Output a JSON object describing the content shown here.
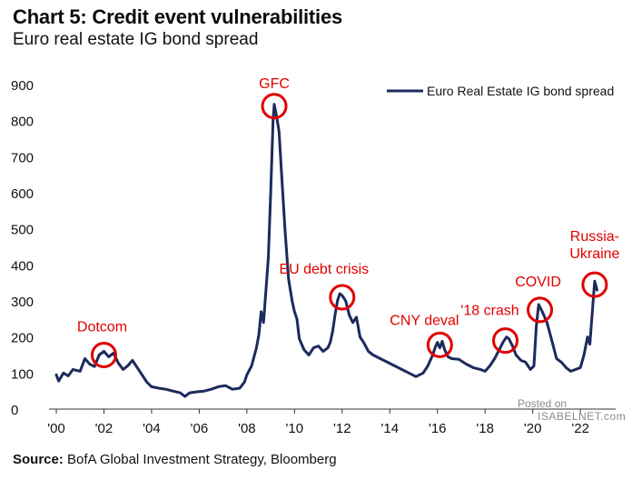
{
  "header": {
    "title": "Chart 5: Credit event vulnerabilities",
    "subtitle": "Euro real estate IG bond spread"
  },
  "footer": {
    "source_label": "Source:",
    "source_text": "BofA Global Investment Strategy, Bloomberg"
  },
  "watermark": {
    "line1": "Posted on",
    "line2": "ISABELNET.com"
  },
  "colors": {
    "series": "#1c2a5c",
    "annotation": "#e00000",
    "axis": "#333333"
  },
  "chart_data": {
    "type": "line",
    "title": "Chart 5: Credit event vulnerabilities",
    "subtitle": "Euro real estate IG bond spread",
    "xlabel": "",
    "ylabel": "",
    "xlim": [
      2000,
      2023.1
    ],
    "ylim": [
      0,
      900
    ],
    "yticks": [
      0,
      100,
      200,
      300,
      400,
      500,
      600,
      700,
      800,
      900
    ],
    "xticks": [
      {
        "value": 2000,
        "label": "'00"
      },
      {
        "value": 2002,
        "label": "'02"
      },
      {
        "value": 2004,
        "label": "'04"
      },
      {
        "value": 2006,
        "label": "'06"
      },
      {
        "value": 2008,
        "label": "'08"
      },
      {
        "value": 2010,
        "label": "'10"
      },
      {
        "value": 2012,
        "label": "'12"
      },
      {
        "value": 2014,
        "label": "'14"
      },
      {
        "value": 2016,
        "label": "'16"
      },
      {
        "value": 2018,
        "label": "'18"
      },
      {
        "value": 2020,
        "label": "'20"
      },
      {
        "value": 2022,
        "label": "'22"
      }
    ],
    "grid": false,
    "legend_position": "top-right",
    "series": [
      {
        "name": "Euro Real Estate IG bond spread",
        "points": [
          [
            2000.0,
            95
          ],
          [
            2000.1,
            78
          ],
          [
            2000.3,
            100
          ],
          [
            2000.5,
            92
          ],
          [
            2000.7,
            110
          ],
          [
            2001.0,
            105
          ],
          [
            2001.2,
            140
          ],
          [
            2001.4,
            125
          ],
          [
            2001.6,
            118
          ],
          [
            2001.8,
            150
          ],
          [
            2002.0,
            160
          ],
          [
            2002.2,
            145
          ],
          [
            2002.4,
            155
          ],
          [
            2002.6,
            128
          ],
          [
            2002.8,
            110
          ],
          [
            2003.0,
            120
          ],
          [
            2003.2,
            135
          ],
          [
            2003.4,
            115
          ],
          [
            2003.6,
            95
          ],
          [
            2003.8,
            75
          ],
          [
            2004.0,
            62
          ],
          [
            2004.3,
            58
          ],
          [
            2004.6,
            55
          ],
          [
            2004.9,
            50
          ],
          [
            2005.2,
            45
          ],
          [
            2005.4,
            35
          ],
          [
            2005.6,
            45
          ],
          [
            2005.9,
            48
          ],
          [
            2006.2,
            50
          ],
          [
            2006.5,
            55
          ],
          [
            2006.8,
            62
          ],
          [
            2007.1,
            65
          ],
          [
            2007.4,
            55
          ],
          [
            2007.7,
            58
          ],
          [
            2007.9,
            75
          ],
          [
            2008.0,
            95
          ],
          [
            2008.2,
            120
          ],
          [
            2008.4,
            170
          ],
          [
            2008.5,
            205
          ],
          [
            2008.6,
            270
          ],
          [
            2008.7,
            240
          ],
          [
            2008.8,
            330
          ],
          [
            2008.9,
            420
          ],
          [
            2009.0,
            600
          ],
          [
            2009.1,
            800
          ],
          [
            2009.15,
            845
          ],
          [
            2009.25,
            810
          ],
          [
            2009.35,
            770
          ],
          [
            2009.45,
            660
          ],
          [
            2009.6,
            500
          ],
          [
            2009.75,
            360
          ],
          [
            2009.9,
            300
          ],
          [
            2010.0,
            270
          ],
          [
            2010.1,
            250
          ],
          [
            2010.2,
            195
          ],
          [
            2010.4,
            165
          ],
          [
            2010.6,
            150
          ],
          [
            2010.8,
            170
          ],
          [
            2011.0,
            175
          ],
          [
            2011.2,
            160
          ],
          [
            2011.4,
            170
          ],
          [
            2011.5,
            185
          ],
          [
            2011.6,
            215
          ],
          [
            2011.7,
            260
          ],
          [
            2011.8,
            300
          ],
          [
            2011.9,
            320
          ],
          [
            2012.0,
            315
          ],
          [
            2012.15,
            300
          ],
          [
            2012.3,
            260
          ],
          [
            2012.45,
            240
          ],
          [
            2012.6,
            255
          ],
          [
            2012.75,
            200
          ],
          [
            2012.9,
            185
          ],
          [
            2013.1,
            160
          ],
          [
            2013.3,
            150
          ],
          [
            2013.6,
            140
          ],
          [
            2013.9,
            130
          ],
          [
            2014.2,
            120
          ],
          [
            2014.5,
            110
          ],
          [
            2014.8,
            100
          ],
          [
            2015.1,
            90
          ],
          [
            2015.4,
            100
          ],
          [
            2015.6,
            120
          ],
          [
            2015.8,
            150
          ],
          [
            2015.9,
            170
          ],
          [
            2016.0,
            185
          ],
          [
            2016.1,
            170
          ],
          [
            2016.2,
            188
          ],
          [
            2016.3,
            165
          ],
          [
            2016.45,
            145
          ],
          [
            2016.6,
            140
          ],
          [
            2016.9,
            138
          ],
          [
            2017.2,
            125
          ],
          [
            2017.5,
            115
          ],
          [
            2017.8,
            110
          ],
          [
            2018.0,
            105
          ],
          [
            2018.2,
            120
          ],
          [
            2018.4,
            140
          ],
          [
            2018.6,
            165
          ],
          [
            2018.75,
            185
          ],
          [
            2018.9,
            200
          ],
          [
            2019.0,
            195
          ],
          [
            2019.15,
            175
          ],
          [
            2019.3,
            150
          ],
          [
            2019.5,
            135
          ],
          [
            2019.7,
            130
          ],
          [
            2019.9,
            110
          ],
          [
            2020.05,
            120
          ],
          [
            2020.15,
            230
          ],
          [
            2020.25,
            290
          ],
          [
            2020.4,
            270
          ],
          [
            2020.6,
            240
          ],
          [
            2020.8,
            190
          ],
          [
            2021.0,
            140
          ],
          [
            2021.2,
            130
          ],
          [
            2021.4,
            115
          ],
          [
            2021.6,
            105
          ],
          [
            2021.8,
            110
          ],
          [
            2022.0,
            115
          ],
          [
            2022.15,
            150
          ],
          [
            2022.3,
            200
          ],
          [
            2022.4,
            180
          ],
          [
            2022.5,
            270
          ],
          [
            2022.6,
            355
          ],
          [
            2022.7,
            330
          ]
        ]
      }
    ],
    "annotations": [
      {
        "label": "Dotcom",
        "x": 2002.0,
        "y": 150
      },
      {
        "label": "GFC",
        "x": 2009.15,
        "y": 840
      },
      {
        "label": "EU debt crisis",
        "x": 2012.0,
        "y": 310
      },
      {
        "label": "CNY deval",
        "x": 2016.1,
        "y": 178
      },
      {
        "label": "'18 crash",
        "x": 2018.85,
        "y": 190
      },
      {
        "label": "COVID",
        "x": 2020.3,
        "y": 275
      },
      {
        "label": "Russia-\nUkraine",
        "x": 2022.6,
        "y": 345
      }
    ]
  }
}
